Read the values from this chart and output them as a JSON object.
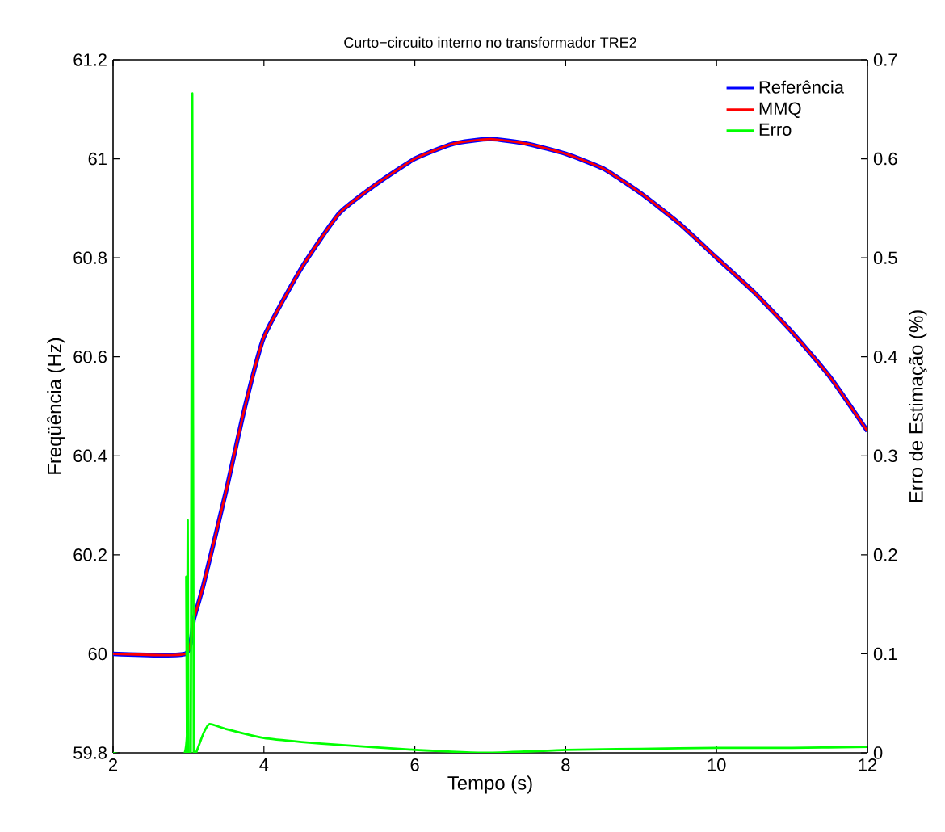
{
  "chart_data": {
    "type": "line",
    "title": "Curto−circuito interno no transformador TRE2",
    "xlabel": "Tempo (s)",
    "ylabel": "Freqüência (Hz)",
    "y2label": "Erro de Estimação (%)",
    "xlim": [
      2,
      12
    ],
    "ylim": [
      59.8,
      61.2
    ],
    "y2lim": [
      0,
      0.7
    ],
    "xticks": [
      2,
      4,
      6,
      8,
      10,
      12
    ],
    "yticks": [
      59.8,
      60,
      60.2,
      60.4,
      60.6,
      60.8,
      61,
      61.2
    ],
    "y2ticks": [
      0,
      0.1,
      0.2,
      0.3,
      0.4,
      0.5,
      0.6,
      0.7
    ],
    "legend": "top right",
    "series": [
      {
        "name": "Referência",
        "color": "#0000ff",
        "x": [
          2,
          2.96,
          3.07,
          3.2,
          3.5,
          3.75,
          4,
          4.5,
          5,
          5.5,
          6,
          6.5,
          7,
          7.5,
          8,
          8.5,
          9,
          9.5,
          10,
          10.5,
          11,
          11.5,
          12
        ],
        "values": [
          60,
          60,
          60.07,
          60.14,
          60.33,
          60.5,
          60.64,
          60.78,
          60.89,
          60.95,
          61.0,
          61.03,
          61.04,
          61.03,
          61.01,
          60.98,
          60.93,
          60.87,
          60.8,
          60.73,
          60.65,
          60.56,
          60.45
        ]
      },
      {
        "name": "MMQ",
        "color": "#ff0000",
        "x": [
          2,
          2.96,
          3.07,
          3.2,
          3.5,
          3.75,
          4,
          4.5,
          5,
          5.5,
          6,
          6.5,
          7,
          7.5,
          8,
          8.5,
          9,
          9.5,
          10,
          10.5,
          11,
          11.5,
          12
        ],
        "values": [
          60,
          60,
          60.07,
          60.14,
          60.33,
          60.5,
          60.64,
          60.78,
          60.89,
          60.95,
          61.0,
          61.03,
          61.04,
          61.03,
          61.01,
          60.98,
          60.93,
          60.87,
          60.8,
          60.73,
          60.65,
          60.56,
          60.45
        ]
      },
      {
        "name": "Erro",
        "color": "#00ff00",
        "axis": "y2",
        "x": [
          2,
          2.95,
          2.97,
          2.98,
          2.99,
          3.0,
          3.03,
          3.05,
          3.07,
          3.1,
          3.2,
          3.28,
          3.5,
          4,
          4.5,
          5,
          6,
          7,
          8,
          9,
          10,
          11,
          12
        ],
        "values": [
          0,
          0,
          0.178,
          0,
          0.235,
          0,
          0,
          0.666,
          0,
          0,
          0.02,
          0.029,
          0.024,
          0.015,
          0.011,
          0.008,
          0.003,
          0.0,
          0.003,
          0.004,
          0.005,
          0.005,
          0.006
        ]
      }
    ]
  }
}
